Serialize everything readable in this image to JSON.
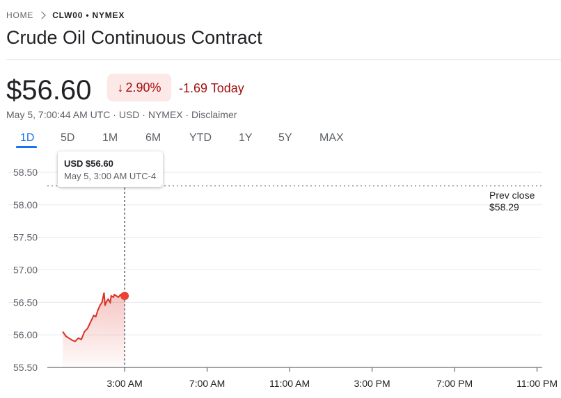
{
  "breadcrumb": {
    "home": "HOME",
    "current": "CLW00 • NYMEX"
  },
  "title": "Crude Oil Continuous Contract",
  "quote": {
    "price": "$56.60",
    "change_percent": "2.90%",
    "change_today": "-1.69 Today",
    "meta": "May 5, 7:00:44 AM UTC · USD · NYMEX · Disclaimer"
  },
  "tabs": [
    "1D",
    "5D",
    "1M",
    "6M",
    "YTD",
    "1Y",
    "5Y",
    "MAX"
  ],
  "active_tab": "1D",
  "tooltip": {
    "price": "USD $56.60",
    "time": "May 5, 3:00 AM UTC-4"
  },
  "prev_close": {
    "label": "Prev close",
    "value": "$58.29"
  },
  "colors": {
    "down": "#d93025",
    "accent": "#1a73e8",
    "badge_bg": "#fce8e6"
  },
  "icons": {
    "change_arrow": "arrow-down-icon",
    "breadcrumb_sep": "chevron-right-icon"
  },
  "chart_data": {
    "type": "area",
    "x_unit": "hours since midnight, May 5 (UTC-4)",
    "x": [
      0.0,
      0.15,
      0.3,
      0.45,
      0.6,
      0.75,
      0.9,
      1.05,
      1.2,
      1.35,
      1.5,
      1.6,
      1.7,
      1.8,
      1.9,
      2.0,
      2.05,
      2.1,
      2.2,
      2.3,
      2.35,
      2.45,
      2.5,
      2.6,
      2.7,
      2.8,
      2.9,
      3.0
    ],
    "series": [
      {
        "values": [
          56.05,
          55.98,
          55.95,
          55.92,
          55.9,
          55.95,
          55.93,
          56.05,
          56.1,
          56.2,
          56.3,
          56.28,
          56.38,
          56.45,
          56.5,
          56.65,
          56.45,
          56.5,
          56.55,
          56.5,
          56.6,
          56.58,
          56.62,
          56.6,
          56.58,
          56.62,
          56.6,
          56.6
        ]
      }
    ],
    "ylim": [
      55.5,
      58.5
    ],
    "yticks": [
      55.5,
      56.0,
      56.5,
      57.0,
      57.5,
      58.0,
      58.5
    ],
    "ytick_labels": [
      "55.50",
      "56.00",
      "56.50",
      "57.00",
      "57.50",
      "58.00",
      "58.50"
    ],
    "xlim": [
      -0.75,
      23.25
    ],
    "xticks": [
      3,
      7,
      11,
      15,
      19,
      23
    ],
    "xtick_labels": [
      "3:00 AM",
      "7:00 AM",
      "11:00 AM",
      "3:00 PM",
      "7:00 PM",
      "11:00 PM"
    ],
    "prev_close": 58.29,
    "marker": {
      "x": 3.0,
      "value": 56.6
    },
    "grid": true
  }
}
